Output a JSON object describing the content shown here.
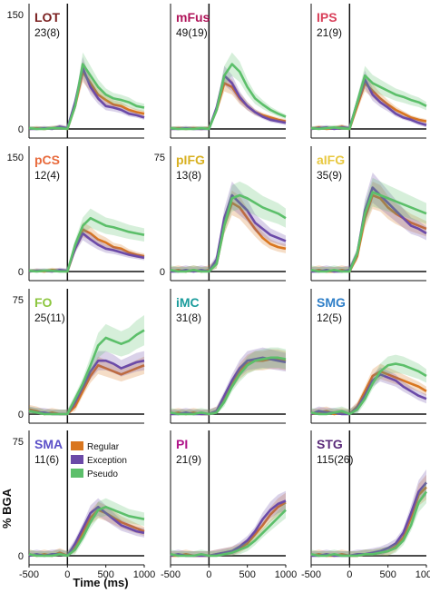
{
  "figure": {
    "xlabel": "Time (ms)",
    "ylabel": "% BGA"
  },
  "legend": {
    "entries": [
      {
        "label": "Regular",
        "color": "#d9761f"
      },
      {
        "label": "Exception",
        "color": "#6b4aa8"
      },
      {
        "label": "Pseudo",
        "color": "#5cbf6a"
      }
    ]
  },
  "chart_data": {
    "type": "line",
    "x_units": "ms",
    "xlim": [
      -500,
      1000
    ],
    "xticks": [
      -500,
      0,
      500,
      1000
    ],
    "series_names": [
      "Regular",
      "Exception",
      "Pseudo"
    ],
    "series_colors": [
      "#d9761f",
      "#6b4aa8",
      "#5cbf6a"
    ],
    "x": [
      -500,
      -400,
      -300,
      -200,
      -100,
      0,
      100,
      200,
      300,
      400,
      500,
      600,
      700,
      800,
      900,
      1000
    ],
    "panels": [
      {
        "region": "LOT",
        "count": "23(8)",
        "color": "#7a1f1f",
        "ylim": [
          0,
          150
        ],
        "ytick_labels": [
          "0",
          "150"
        ],
        "legend": false,
        "series": [
          {
            "name": "Regular",
            "values": [
              0,
              1,
              0,
              1,
              2,
              0,
              30,
              75,
              60,
              45,
              38,
              32,
              30,
              25,
              22,
              20
            ]
          },
          {
            "name": "Exception",
            "values": [
              0,
              0,
              1,
              0,
              3,
              1,
              35,
              80,
              55,
              40,
              30,
              28,
              25,
              20,
              18,
              15
            ]
          },
          {
            "name": "Pseudo",
            "values": [
              1,
              0,
              0,
              1,
              1,
              0,
              30,
              85,
              70,
              55,
              45,
              40,
              38,
              35,
              30,
              28
            ]
          }
        ]
      },
      {
        "region": "mFus",
        "count": "49(19)",
        "color": "#b0155a",
        "ylim": [
          0,
          150
        ],
        "ytick_labels": [
          "",
          ""
        ],
        "legend": false,
        "series": [
          {
            "name": "Regular",
            "values": [
              0,
              1,
              0,
              1,
              0,
              1,
              25,
              60,
              55,
              40,
              30,
              22,
              18,
              15,
              12,
              10
            ]
          },
          {
            "name": "Exception",
            "values": [
              0,
              0,
              1,
              0,
              0,
              0,
              28,
              70,
              60,
              42,
              30,
              22,
              16,
              12,
              10,
              8
            ]
          },
          {
            "name": "Pseudo",
            "values": [
              1,
              0,
              0,
              0,
              1,
              0,
              25,
              70,
              85,
              75,
              55,
              40,
              32,
              25,
              20,
              16
            ]
          }
        ]
      },
      {
        "region": "IPS",
        "count": "21(9)",
        "color": "#d9405a",
        "ylim": [
          0,
          150
        ],
        "ytick_labels": [
          "",
          ""
        ],
        "legend": false,
        "series": [
          {
            "name": "Regular",
            "values": [
              0,
              2,
              0,
              1,
              3,
              0,
              30,
              60,
              50,
              40,
              32,
              25,
              20,
              15,
              12,
              10
            ]
          },
          {
            "name": "Exception",
            "values": [
              0,
              1,
              2,
              0,
              2,
              1,
              35,
              65,
              45,
              35,
              28,
              20,
              15,
              12,
              8,
              5
            ]
          },
          {
            "name": "Pseudo",
            "values": [
              1,
              0,
              1,
              2,
              1,
              0,
              35,
              70,
              60,
              55,
              50,
              45,
              42,
              38,
              35,
              30
            ]
          }
        ]
      },
      {
        "region": "pCS",
        "count": "12(4)",
        "color": "#e86a3c",
        "ylim": [
          0,
          150
        ],
        "ytick_labels": [
          "0",
          "150"
        ],
        "legend": false,
        "series": [
          {
            "name": "Regular",
            "values": [
              0,
              1,
              0,
              2,
              1,
              0,
              30,
              55,
              50,
              42,
              38,
              32,
              30,
              25,
              22,
              20
            ]
          },
          {
            "name": "Exception",
            "values": [
              0,
              1,
              1,
              0,
              2,
              1,
              30,
              50,
              42,
              35,
              30,
              28,
              25,
              22,
              20,
              18
            ]
          },
          {
            "name": "Pseudo",
            "values": [
              1,
              0,
              1,
              1,
              0,
              0,
              35,
              60,
              70,
              65,
              60,
              58,
              55,
              52,
              50,
              48
            ]
          }
        ]
      },
      {
        "region": "pIFG",
        "count": "13(8)",
        "color": "#d8b020",
        "ylim": [
          0,
          75
        ],
        "ytick_labels": [
          "0",
          "75"
        ],
        "legend": false,
        "series": [
          {
            "name": "Regular",
            "values": [
              0,
              1,
              0,
              1,
              0,
              1,
              5,
              30,
              45,
              42,
              35,
              28,
              22,
              18,
              16,
              15
            ]
          },
          {
            "name": "Exception",
            "values": [
              0,
              0,
              1,
              0,
              1,
              0,
              8,
              35,
              50,
              45,
              40,
              32,
              28,
              24,
              22,
              20
            ]
          },
          {
            "name": "Pseudo",
            "values": [
              1,
              0,
              0,
              1,
              0,
              0,
              5,
              30,
              48,
              50,
              48,
              45,
              42,
              40,
              38,
              35
            ]
          }
        ]
      },
      {
        "region": "aIFG",
        "count": "35(9)",
        "color": "#e8c840",
        "ylim": [
          0,
          75
        ],
        "ytick_labels": [
          "",
          ""
        ],
        "legend": false,
        "series": [
          {
            "name": "Regular",
            "values": [
              0,
              1,
              0,
              0,
              1,
              0,
              10,
              35,
              50,
              48,
              42,
              38,
              35,
              32,
              30,
              28
            ]
          },
          {
            "name": "Exception",
            "values": [
              0,
              0,
              1,
              0,
              0,
              1,
              12,
              40,
              55,
              50,
              45,
              40,
              35,
              30,
              28,
              25
            ]
          },
          {
            "name": "Pseudo",
            "values": [
              1,
              0,
              0,
              1,
              0,
              0,
              12,
              38,
              52,
              50,
              48,
              46,
              44,
              42,
              40,
              38
            ]
          }
        ]
      },
      {
        "region": "FO",
        "count": "25(11)",
        "color": "#8cc63f",
        "ylim": [
          0,
          75
        ],
        "ytick_labels": [
          "0",
          "75"
        ],
        "legend": false,
        "series": [
          {
            "name": "Regular",
            "values": [
              3,
              2,
              0,
              1,
              0,
              0,
              5,
              15,
              25,
              32,
              30,
              28,
              26,
              28,
              30,
              32
            ]
          },
          {
            "name": "Exception",
            "values": [
              2,
              1,
              1,
              0,
              0,
              0,
              8,
              18,
              28,
              35,
              35,
              33,
              30,
              32,
              34,
              35
            ]
          },
          {
            "name": "Pseudo",
            "values": [
              2,
              1,
              0,
              0,
              0,
              0,
              10,
              20,
              32,
              45,
              50,
              48,
              46,
              48,
              52,
              55
            ]
          }
        ]
      },
      {
        "region": "iMC",
        "count": "31(8)",
        "color": "#1a9c9c",
        "ylim": [
          0,
          75
        ],
        "ytick_labels": [
          "",
          ""
        ],
        "legend": false,
        "series": [
          {
            "name": "Regular",
            "values": [
              0,
              1,
              0,
              1,
              0,
              0,
              2,
              10,
              20,
              28,
              33,
              35,
              35,
              36,
              36,
              35
            ]
          },
          {
            "name": "Exception",
            "values": [
              0,
              0,
              1,
              0,
              0,
              0,
              2,
              12,
              22,
              30,
              35,
              36,
              37,
              36,
              35,
              34
            ]
          },
          {
            "name": "Pseudo",
            "values": [
              1,
              0,
              0,
              0,
              1,
              0,
              1,
              8,
              18,
              26,
              32,
              35,
              36,
              37,
              37,
              36
            ]
          }
        ]
      },
      {
        "region": "SMG",
        "count": "12(5)",
        "color": "#2f7fc8",
        "ylim": [
          0,
          75
        ],
        "ytick_labels": [
          "",
          ""
        ],
        "legend": false,
        "series": [
          {
            "name": "Regular",
            "values": [
              0,
              1,
              2,
              0,
              1,
              0,
              5,
              15,
              25,
              28,
              26,
              24,
              22,
              20,
              18,
              15
            ]
          },
          {
            "name": "Exception",
            "values": [
              0,
              2,
              1,
              1,
              0,
              0,
              4,
              12,
              22,
              26,
              24,
              22,
              18,
              15,
              12,
              10
            ]
          },
          {
            "name": "Pseudo",
            "values": [
              1,
              0,
              0,
              1,
              2,
              0,
              3,
              10,
              20,
              28,
              32,
              33,
              32,
              30,
              28,
              25
            ]
          }
        ]
      },
      {
        "region": "SMA",
        "count": "11(6)",
        "color": "#5a4fc8",
        "ylim": [
          0,
          75
        ],
        "ytick_labels": [
          "0",
          "75"
        ],
        "legend": true,
        "series": [
          {
            "name": "Regular",
            "values": [
              1,
              0,
              1,
              0,
              2,
              0,
              5,
              15,
              25,
              30,
              28,
              25,
              22,
              20,
              18,
              16
            ]
          },
          {
            "name": "Exception",
            "values": [
              0,
              1,
              0,
              1,
              1,
              0,
              8,
              18,
              28,
              32,
              28,
              24,
              20,
              18,
              16,
              15
            ]
          },
          {
            "name": "Pseudo",
            "values": [
              1,
              0,
              0,
              0,
              1,
              0,
              4,
              12,
              22,
              30,
              32,
              30,
              28,
              26,
              25,
              24
            ]
          }
        ]
      },
      {
        "region": "PI",
        "count": "21(9)",
        "color": "#b0158a",
        "ylim": [
          0,
          75
        ],
        "ytick_labels": [
          "",
          ""
        ],
        "legend": false,
        "series": [
          {
            "name": "Regular",
            "values": [
              0,
              0,
              1,
              0,
              0,
              0,
              1,
              2,
              3,
              5,
              8,
              14,
              20,
              27,
              32,
              35
            ]
          },
          {
            "name": "Exception",
            "values": [
              0,
              1,
              0,
              0,
              0,
              0,
              1,
              2,
              3,
              6,
              10,
              16,
              24,
              30,
              34,
              36
            ]
          },
          {
            "name": "Pseudo",
            "values": [
              1,
              0,
              0,
              0,
              1,
              0,
              0,
              1,
              2,
              4,
              6,
              10,
              15,
              20,
              25,
              30
            ]
          }
        ]
      },
      {
        "region": "STG",
        "count": "115(26)",
        "color": "#5a2a7a",
        "ylim": [
          0,
          75
        ],
        "ytick_labels": [
          "",
          ""
        ],
        "legend": false,
        "series": [
          {
            "name": "Regular",
            "values": [
              0,
              1,
              0,
              0,
              1,
              0,
              0,
              1,
              1,
              2,
              3,
              6,
              12,
              25,
              40,
              45
            ]
          },
          {
            "name": "Exception",
            "values": [
              0,
              0,
              1,
              0,
              0,
              0,
              1,
              1,
              2,
              3,
              5,
              8,
              15,
              28,
              42,
              48
            ]
          },
          {
            "name": "Pseudo",
            "values": [
              1,
              0,
              0,
              1,
              0,
              0,
              0,
              1,
              1,
              2,
              3,
              5,
              10,
              20,
              35,
              42
            ]
          }
        ]
      }
    ]
  }
}
